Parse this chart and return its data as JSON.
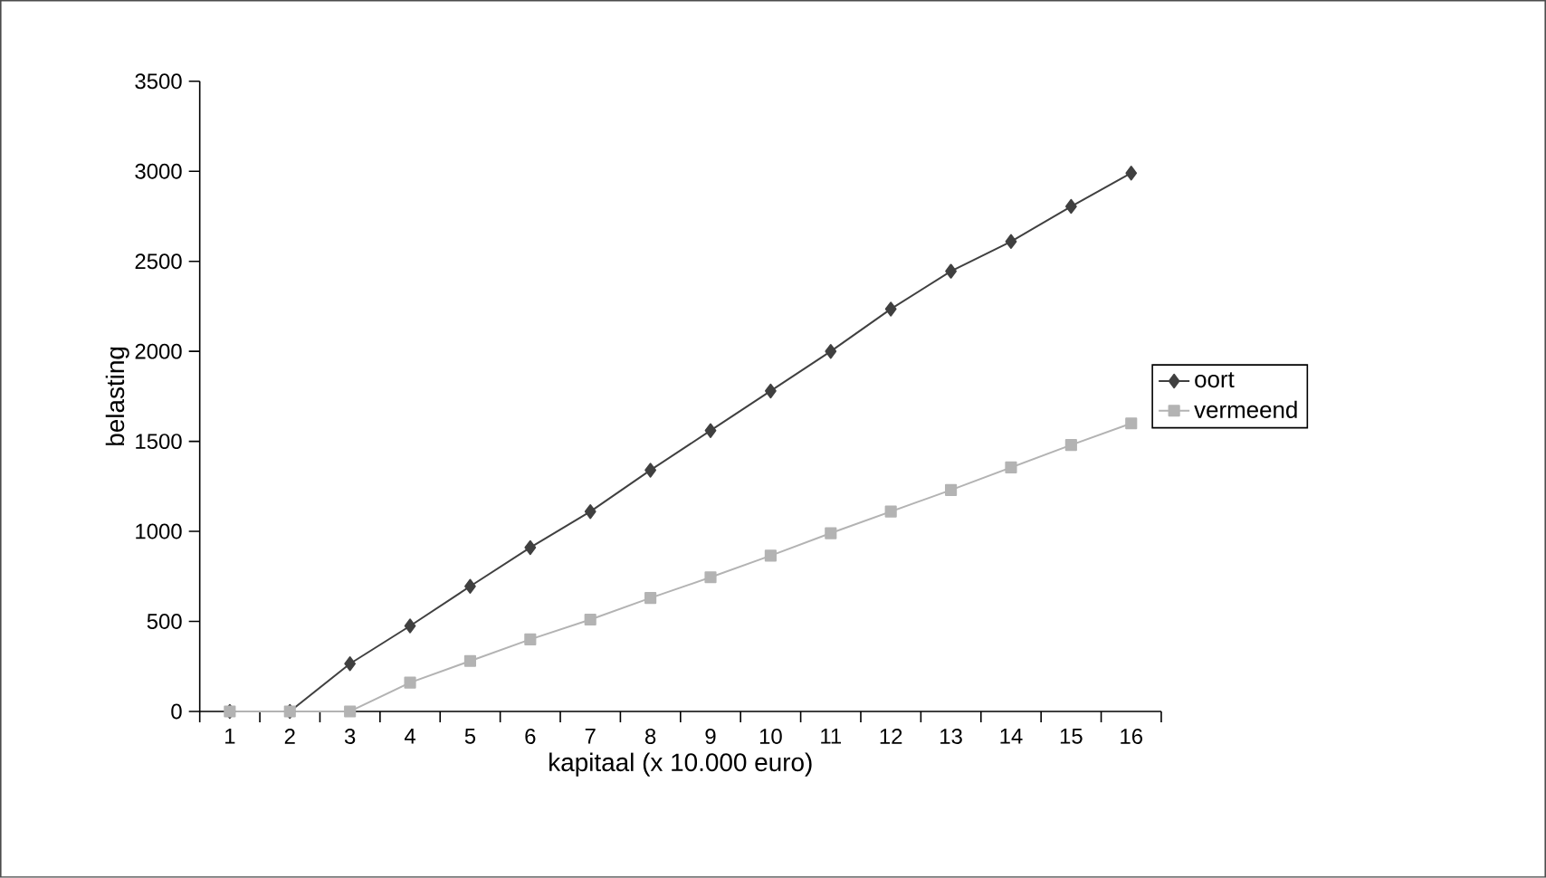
{
  "chart_data": {
    "type": "line",
    "xlabel": "kapitaal (x 10.000 euro)",
    "ylabel": "belasting",
    "categories": [
      "1",
      "2",
      "3",
      "4",
      "5",
      "6",
      "7",
      "8",
      "9",
      "10",
      "11",
      "12",
      "13",
      "14",
      "15",
      "16"
    ],
    "series": [
      {
        "name": "oort",
        "color": "#404040",
        "marker": "diamond",
        "values": [
          0,
          0,
          265,
          475,
          695,
          910,
          1110,
          1340,
          1560,
          1780,
          2000,
          2235,
          2445,
          2610,
          2805,
          2990
        ]
      },
      {
        "name": "vermeend",
        "color": "#b3b3b3",
        "marker": "square",
        "values": [
          0,
          0,
          0,
          160,
          280,
          400,
          510,
          630,
          745,
          865,
          990,
          1110,
          1230,
          1355,
          1480,
          1600
        ]
      }
    ],
    "ylim": [
      0,
      3500
    ],
    "yticks": [
      0,
      500,
      1000,
      1500,
      2000,
      2500,
      3000,
      3500
    ],
    "grid": false,
    "legend": "right",
    "line_style": "solid"
  }
}
